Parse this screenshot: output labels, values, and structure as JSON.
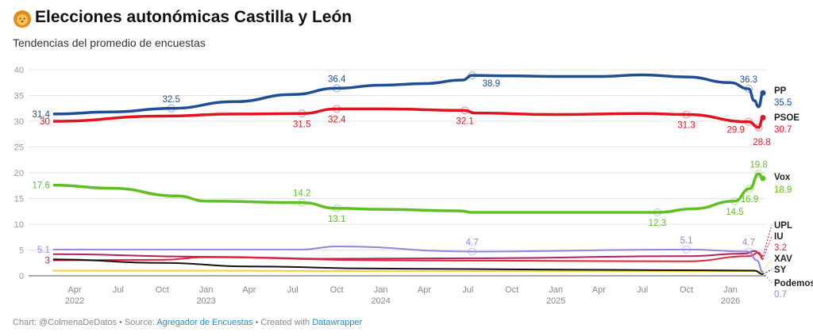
{
  "header": {
    "title": "Elecciones autonómicas Castilla y León",
    "subtitle": "Tendencias del promedio de encuestas"
  },
  "footer": {
    "prefix": "Chart: @ColmenaDeDatos • Source: ",
    "source": "Agregador de Encuestas",
    "mid": " • Created with ",
    "tool": "Datawrapper"
  },
  "chart_data": {
    "type": "line",
    "ylim": [
      0,
      40
    ],
    "yticks": [
      0,
      5,
      10,
      15,
      20,
      25,
      30,
      35,
      40
    ],
    "xlim": [
      "2022-01-15",
      "2026-03-20"
    ],
    "xticks": [
      {
        "date": "2022-04-01",
        "label": "Apr",
        "year": "2022"
      },
      {
        "date": "2022-07-01",
        "label": "Jul"
      },
      {
        "date": "2022-10-01",
        "label": "Oct"
      },
      {
        "date": "2023-01-01",
        "label": "Jan",
        "year": "2023"
      },
      {
        "date": "2023-04-01",
        "label": "Apr"
      },
      {
        "date": "2023-07-01",
        "label": "Jul"
      },
      {
        "date": "2023-10-01",
        "label": "Oct"
      },
      {
        "date": "2024-01-01",
        "label": "Jan",
        "year": "2024"
      },
      {
        "date": "2024-04-01",
        "label": "Apr"
      },
      {
        "date": "2024-07-01",
        "label": "Jul"
      },
      {
        "date": "2024-10-01",
        "label": "Oct"
      },
      {
        "date": "2025-01-01",
        "label": "Jan",
        "year": "2025"
      },
      {
        "date": "2025-04-01",
        "label": "Apr"
      },
      {
        "date": "2025-07-01",
        "label": "Jul"
      },
      {
        "date": "2025-10-01",
        "label": "Oct"
      },
      {
        "date": "2026-01-01",
        "label": "Jan",
        "year": "2026"
      }
    ],
    "grid": true,
    "series": [
      {
        "name": "PP",
        "color": "#1f4e96",
        "end_label": "35.5",
        "points": [
          [
            "2022-02-15",
            31.4
          ],
          [
            "2022-06-15",
            31.8
          ],
          [
            "2022-10-20",
            32.5
          ],
          [
            "2023-03-01",
            33.8
          ],
          [
            "2023-07-01",
            35.2
          ],
          [
            "2023-10-01",
            36.4
          ],
          [
            "2024-01-01",
            37.0
          ],
          [
            "2024-04-01",
            37.3
          ],
          [
            "2024-06-20",
            38.0
          ],
          [
            "2024-07-10",
            38.9
          ],
          [
            "2024-10-01",
            38.8
          ],
          [
            "2025-01-01",
            38.7
          ],
          [
            "2025-04-01",
            38.7
          ],
          [
            "2025-07-01",
            39.0
          ],
          [
            "2025-10-01",
            38.6
          ],
          [
            "2026-01-01",
            37.5
          ],
          [
            "2026-02-08",
            36.3
          ],
          [
            "2026-02-20",
            34.0
          ],
          [
            "2026-03-01",
            32.8
          ],
          [
            "2026-03-10",
            35.5
          ]
        ],
        "annotations": [
          [
            "2022-02-15",
            "31.4"
          ],
          [
            "2022-10-20",
            "32.5"
          ],
          [
            "2023-10-01",
            "36.4"
          ],
          [
            "2024-07-10",
            "38.9"
          ],
          [
            "2026-02-08",
            "36.3"
          ]
        ]
      },
      {
        "name": "PSOE",
        "color": "#e3121f",
        "end_label": "30.7",
        "points": [
          [
            "2022-02-15",
            30.0
          ],
          [
            "2022-10-01",
            31.0
          ],
          [
            "2023-03-01",
            31.4
          ],
          [
            "2023-07-20",
            31.5
          ],
          [
            "2023-10-01",
            32.4
          ],
          [
            "2024-01-01",
            32.4
          ],
          [
            "2024-06-25",
            32.1
          ],
          [
            "2024-07-15",
            31.6
          ],
          [
            "2025-01-01",
            31.3
          ],
          [
            "2025-07-01",
            31.5
          ],
          [
            "2025-10-01",
            31.3
          ],
          [
            "2026-02-08",
            29.9
          ],
          [
            "2026-03-01",
            28.8
          ],
          [
            "2026-03-10",
            30.7
          ]
        ],
        "annotations": [
          [
            "2022-02-15",
            "30"
          ],
          [
            "2023-07-20",
            "31.5"
          ],
          [
            "2023-10-01",
            "32.4"
          ],
          [
            "2024-06-25",
            "32.1"
          ],
          [
            "2025-10-01",
            "31.3"
          ],
          [
            "2026-02-08",
            "29.9"
          ],
          [
            "2026-03-01",
            "28.8"
          ]
        ]
      },
      {
        "name": "Vox",
        "color": "#5fbf22",
        "end_label": "18.9",
        "points": [
          [
            "2022-02-15",
            17.6
          ],
          [
            "2022-06-15",
            17.0
          ],
          [
            "2022-11-01",
            15.5
          ],
          [
            "2023-01-01",
            14.5
          ],
          [
            "2023-07-20",
            14.2
          ],
          [
            "2023-10-01",
            13.1
          ],
          [
            "2024-01-01",
            12.9
          ],
          [
            "2024-06-15",
            12.6
          ],
          [
            "2024-07-10",
            12.3
          ],
          [
            "2025-01-01",
            12.3
          ],
          [
            "2025-08-01",
            12.3
          ],
          [
            "2025-10-15",
            13.0
          ],
          [
            "2026-01-10",
            14.5
          ],
          [
            "2026-02-10",
            16.9
          ],
          [
            "2026-03-01",
            19.8
          ],
          [
            "2026-03-10",
            18.9
          ]
        ],
        "annotations": [
          [
            "2022-02-15",
            "17.6"
          ],
          [
            "2023-07-20",
            "14.2"
          ],
          [
            "2023-10-01",
            "13.1"
          ],
          [
            "2025-08-01",
            "12.3"
          ],
          [
            "2026-01-10",
            "14.5"
          ],
          [
            "2026-02-10",
            "16.9"
          ],
          [
            "2026-03-01",
            "19.8"
          ]
        ]
      },
      {
        "name": "UPL",
        "color": "#b0205a",
        "end_label": "",
        "points": [
          [
            "2022-02-15",
            4.2
          ],
          [
            "2023-01-01",
            3.7
          ],
          [
            "2023-10-01",
            3.3
          ],
          [
            "2024-07-01",
            3.4
          ],
          [
            "2025-10-01",
            3.8
          ],
          [
            "2026-02-01",
            4.3
          ],
          [
            "2026-02-20",
            4.8
          ],
          [
            "2026-03-10",
            3.8
          ]
        ],
        "annotations": []
      },
      {
        "name": "IU",
        "color": "#e8203a",
        "end_label": "3.2",
        "points": [
          [
            "2022-02-15",
            3.0
          ],
          [
            "2022-10-01",
            3.1
          ],
          [
            "2023-01-01",
            3.6
          ],
          [
            "2024-01-01",
            3.0
          ],
          [
            "2025-10-01",
            2.8
          ],
          [
            "2026-02-10",
            3.8
          ],
          [
            "2026-03-01",
            4.5
          ],
          [
            "2026-03-10",
            3.2
          ]
        ],
        "annotations": [
          [
            "2022-02-15",
            "3"
          ]
        ]
      },
      {
        "name": "XAV",
        "color": "#f2d22e",
        "end_label": "",
        "points": [
          [
            "2022-02-15",
            1.0
          ],
          [
            "2023-01-01",
            1.0
          ],
          [
            "2024-01-01",
            0.9
          ],
          [
            "2026-02-20",
            0.9
          ],
          [
            "2026-03-10",
            0.8
          ]
        ],
        "annotations": []
      },
      {
        "name": "SY",
        "color": "#111111",
        "end_label": "",
        "points": [
          [
            "2022-02-15",
            3.2
          ],
          [
            "2022-10-01",
            2.5
          ],
          [
            "2023-04-01",
            1.8
          ],
          [
            "2024-01-01",
            1.4
          ],
          [
            "2025-01-01",
            1.2
          ],
          [
            "2026-02-20",
            1.0
          ],
          [
            "2026-03-10",
            0.3
          ]
        ],
        "annotations": []
      },
      {
        "name": "Podemos",
        "color": "#9b7fe8",
        "end_label": "0.7",
        "points": [
          [
            "2022-02-15",
            5.1
          ],
          [
            "2023-07-20",
            5.1
          ],
          [
            "2023-10-01",
            5.7
          ],
          [
            "2024-07-10",
            4.7
          ],
          [
            "2025-10-01",
            5.1
          ],
          [
            "2026-02-08",
            4.7
          ],
          [
            "2026-02-25",
            3.0
          ],
          [
            "2026-03-10",
            0.7
          ]
        ],
        "annotations": [
          [
            "2022-02-15",
            "5.1"
          ],
          [
            "2024-07-10",
            "4.7"
          ],
          [
            "2025-10-01",
            "5.1"
          ],
          [
            "2026-02-08",
            "4.7"
          ]
        ]
      }
    ]
  }
}
